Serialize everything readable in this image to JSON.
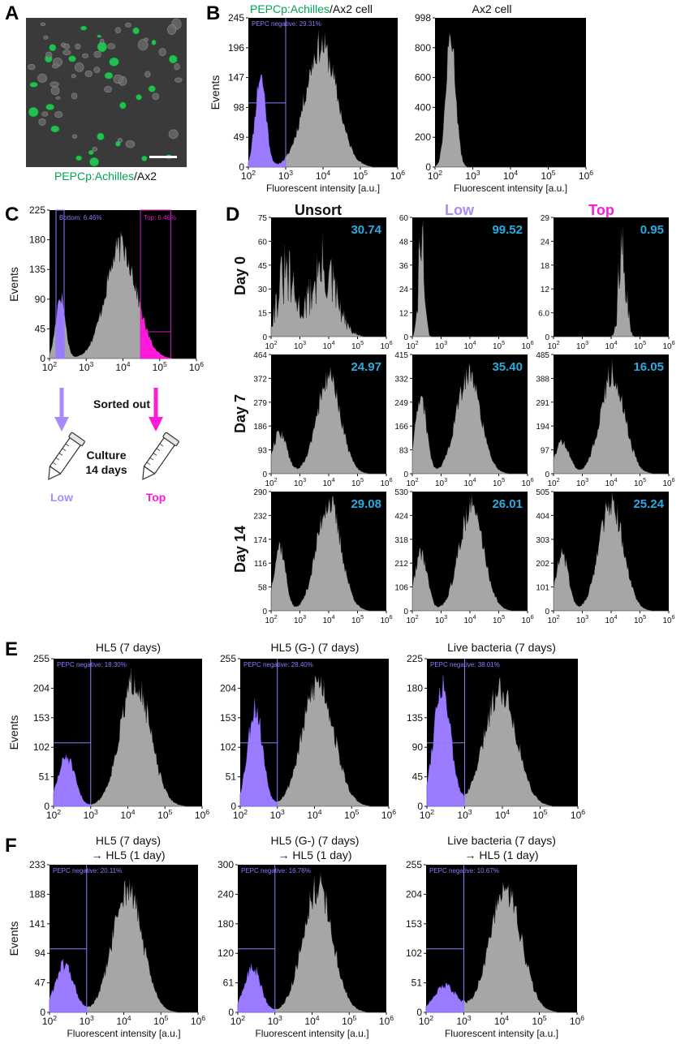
{
  "panel_labels": {
    "A": "A",
    "B": "B",
    "C": "C",
    "D": "D",
    "E": "E",
    "F": "F"
  },
  "colors": {
    "histogram_fill": "#a6a6a6",
    "negative_fill": "#9b7bff",
    "top_fill": "#ff1ad9",
    "gate_line_blue": "#8a7cff",
    "gate_line_magenta": "#d11fc9",
    "percent_label": "#29abe2",
    "achilles_green": "#00a651",
    "low_label": "#a78bfa",
    "top_label": "#ff1ad9",
    "micro_background": "#3a3a3a"
  },
  "panel_a": {
    "caption_green": "PEPCp:Achilles",
    "caption_black": "/Ax2"
  },
  "panel_b": {
    "left_title_green": "PEPCp:Achilles",
    "left_title_black": "/Ax2 cell",
    "right_title": "Ax2 cell",
    "ylabel": "Events",
    "xlabel": "Fluorescent intensity [a.u.]",
    "gate_label": "PEPC negative: 29.31%"
  },
  "panel_c": {
    "ylabel": "Events",
    "bottom_gate_label": "Bottom: 6.46%",
    "top_gate_label": "Top: 6.46%",
    "sorted_out": "Sorted out",
    "culture_line1": "Culture",
    "culture_line2": "14 days",
    "low": "Low",
    "top": "Top"
  },
  "panel_d": {
    "col_headers": [
      "Unsort",
      "Low",
      "Top"
    ],
    "row_headers": [
      "Day 0",
      "Day 7",
      "Day 14"
    ],
    "percents": [
      [
        "30.74",
        "99.52",
        "0.95"
      ],
      [
        "24.97",
        "35.40",
        "16.05"
      ],
      [
        "29.08",
        "26.01",
        "25.24"
      ]
    ],
    "yticks": [
      [
        [
          "0",
          "15",
          "30",
          "45",
          "60",
          "75"
        ],
        [
          "0",
          "12",
          "24",
          "36",
          "48",
          "60"
        ],
        [
          "0",
          "6.0",
          "12",
          "18",
          "24",
          "29"
        ]
      ],
      [
        [
          "0",
          "93",
          "186",
          "279",
          "372",
          "464"
        ],
        [
          "0",
          "83",
          "166",
          "249",
          "332",
          "415"
        ],
        [
          "0",
          "97",
          "194",
          "291",
          "388",
          "485"
        ]
      ],
      [
        [
          "0",
          "58",
          "116",
          "174",
          "232",
          "290"
        ],
        [
          "0",
          "106",
          "212",
          "318",
          "424",
          "530"
        ],
        [
          "0",
          "101",
          "202",
          "303",
          "404",
          "505"
        ]
      ]
    ]
  },
  "panel_e": {
    "ylabel": "Events",
    "titles": [
      "HL5 (7 days)",
      "HL5 (G-) (7 days)",
      "Live bacteria (7 days)"
    ],
    "gate_labels": [
      "PEPC negative: 18.30%",
      "PEPC negative: 28.40%",
      "PEPC negative: 38.01%"
    ]
  },
  "panel_f": {
    "ylabel": "Events",
    "xlabel": "Fluorescent intensity [a.u.]",
    "titles_line1": [
      "HL5 (7 days)",
      "HL5 (G-) (7 days)",
      "Live bacteria (7 days)"
    ],
    "titles_line2": [
      "→ HL5 (1 day)",
      "→ HL5 (1 day)",
      "→ HL5 (1 day)"
    ],
    "gate_labels": [
      "PEPC negative: 20.11%",
      "PEPC negative: 16.76%",
      "PEPC negative: 10.67%"
    ]
  },
  "chart_data": [
    {
      "id": "B-left",
      "type": "histogram",
      "title": "PEPCp:Achilles/Ax2 cell",
      "xlabel": "Fluorescent intensity [a.u.]",
      "ylabel": "Events",
      "xscale": "log",
      "xlim": [
        100,
        1000000
      ],
      "ylim": [
        0,
        245
      ],
      "yticks": [
        "0",
        "49",
        "98",
        "147",
        "196",
        "245"
      ],
      "gate_x": 1000,
      "gate_fraction": 0.2931,
      "peaks": [
        {
          "log10_center": 2.33,
          "sigma": 0.14,
          "height": 150
        },
        {
          "log10_center": 3.95,
          "sigma": 0.42,
          "height": 200
        }
      ]
    },
    {
      "id": "B-right",
      "type": "histogram",
      "title": "Ax2 cell",
      "xlabel": "Fluorescent intensity [a.u.]",
      "xscale": "log",
      "xlim": [
        100,
        1000000
      ],
      "ylim": [
        0,
        998
      ],
      "yticks": [
        "0",
        "200",
        "400",
        "600",
        "800",
        "998"
      ],
      "peaks": [
        {
          "log10_center": 2.42,
          "sigma": 0.13,
          "height": 880
        }
      ]
    },
    {
      "id": "C",
      "type": "histogram",
      "ylabel": "Events",
      "xscale": "log",
      "xlim": [
        100,
        1000000
      ],
      "ylim": [
        0,
        225
      ],
      "yticks": [
        "0",
        "45",
        "90",
        "135",
        "180",
        "225"
      ],
      "bottom_gate": [
        150,
        250
      ],
      "top_gate": [
        30000,
        200000
      ],
      "peaks": [
        {
          "log10_center": 2.3,
          "sigma": 0.13,
          "height": 95
        },
        {
          "log10_center": 3.95,
          "sigma": 0.42,
          "height": 170
        }
      ]
    },
    {
      "id": "D-day0-unsort",
      "type": "histogram",
      "ylim": [
        0,
        75
      ],
      "noisy": true,
      "peaks": [
        {
          "log10_center": 2.5,
          "sigma": 0.3,
          "height": 38
        },
        {
          "log10_center": 3.8,
          "sigma": 0.45,
          "height": 42
        }
      ]
    },
    {
      "id": "D-day0-low",
      "type": "histogram",
      "ylim": [
        0,
        60
      ],
      "noisy": true,
      "peaks": [
        {
          "log10_center": 2.32,
          "sigma": 0.1,
          "height": 48
        }
      ]
    },
    {
      "id": "D-day0-top",
      "type": "histogram",
      "ylim": [
        0,
        29
      ],
      "noisy": true,
      "peaks": [
        {
          "log10_center": 4.4,
          "sigma": 0.12,
          "height": 26
        }
      ]
    },
    {
      "id": "D-day7-unsort",
      "type": "histogram",
      "ylim": [
        0,
        464
      ],
      "peaks": [
        {
          "log10_center": 2.3,
          "sigma": 0.25,
          "height": 160
        },
        {
          "log10_center": 4.0,
          "sigma": 0.42,
          "height": 370
        }
      ]
    },
    {
      "id": "D-day7-low",
      "type": "histogram",
      "ylim": [
        0,
        415
      ],
      "peaks": [
        {
          "log10_center": 2.3,
          "sigma": 0.2,
          "height": 260
        },
        {
          "log10_center": 3.95,
          "sigma": 0.42,
          "height": 345
        }
      ]
    },
    {
      "id": "D-day7-top",
      "type": "histogram",
      "ylim": [
        0,
        485
      ],
      "peaks": [
        {
          "log10_center": 2.3,
          "sigma": 0.25,
          "height": 130
        },
        {
          "log10_center": 4.05,
          "sigma": 0.42,
          "height": 410
        }
      ]
    },
    {
      "id": "D-day14-unsort",
      "type": "histogram",
      "ylim": [
        0,
        290
      ],
      "peaks": [
        {
          "log10_center": 2.3,
          "sigma": 0.2,
          "height": 160
        },
        {
          "log10_center": 4.0,
          "sigma": 0.42,
          "height": 265
        }
      ]
    },
    {
      "id": "D-day14-low",
      "type": "histogram",
      "ylim": [
        0,
        530
      ],
      "peaks": [
        {
          "log10_center": 2.3,
          "sigma": 0.22,
          "height": 260
        },
        {
          "log10_center": 4.05,
          "sigma": 0.42,
          "height": 465
        }
      ]
    },
    {
      "id": "D-day14-top",
      "type": "histogram",
      "ylim": [
        0,
        505
      ],
      "peaks": [
        {
          "log10_center": 2.3,
          "sigma": 0.22,
          "height": 245
        },
        {
          "log10_center": 4.0,
          "sigma": 0.42,
          "height": 455
        }
      ]
    },
    {
      "id": "E-HL5",
      "type": "histogram",
      "title": "HL5 (7 days)",
      "ylabel": "Events",
      "xscale": "log",
      "xlim": [
        100,
        1000000
      ],
      "ylim": [
        0,
        255
      ],
      "yticks": [
        "0",
        "51",
        "102",
        "153",
        "204",
        "255"
      ],
      "gate_x": 1000,
      "gate_fraction": 0.183,
      "peaks": [
        {
          "log10_center": 2.35,
          "sigma": 0.22,
          "height": 85
        },
        {
          "log10_center": 4.2,
          "sigma": 0.4,
          "height": 220
        }
      ]
    },
    {
      "id": "E-HL5G",
      "type": "histogram",
      "title": "HL5 (G-) (7 days)",
      "xscale": "log",
      "xlim": [
        100,
        1000000
      ],
      "ylim": [
        0,
        255
      ],
      "yticks": [
        "0",
        "51",
        "102",
        "153",
        "204",
        "255"
      ],
      "gate_x": 1000,
      "gate_fraction": 0.284,
      "peaks": [
        {
          "log10_center": 2.4,
          "sigma": 0.2,
          "height": 170
        },
        {
          "log10_center": 4.1,
          "sigma": 0.42,
          "height": 215
        }
      ]
    },
    {
      "id": "E-bacteria",
      "type": "histogram",
      "title": "Live bacteria (7 days)",
      "xscale": "log",
      "xlim": [
        100,
        1000000
      ],
      "ylim": [
        0,
        225
      ],
      "yticks": [
        "0",
        "45",
        "90",
        "135",
        "180",
        "225"
      ],
      "gate_x": 1000,
      "gate_fraction": 0.3801,
      "peaks": [
        {
          "log10_center": 2.4,
          "sigma": 0.22,
          "height": 185
        },
        {
          "log10_center": 3.95,
          "sigma": 0.42,
          "height": 180
        }
      ]
    },
    {
      "id": "F-HL5",
      "type": "histogram",
      "title": "HL5 (7 days) → HL5 (1 day)",
      "ylabel": "Events",
      "xlabel": "Fluorescent intensity [a.u.]",
      "xscale": "log",
      "xlim": [
        100,
        1000000
      ],
      "ylim": [
        0,
        233
      ],
      "yticks": [
        "0",
        "47",
        "94",
        "141",
        "188",
        "233"
      ],
      "gate_x": 1000,
      "gate_fraction": 0.2011,
      "peaks": [
        {
          "log10_center": 2.4,
          "sigma": 0.25,
          "height": 75
        },
        {
          "log10_center": 4.1,
          "sigma": 0.4,
          "height": 195
        }
      ]
    },
    {
      "id": "F-HL5G",
      "type": "histogram",
      "title": "HL5 (G-) (7 days) → HL5 (1 day)",
      "xlabel": "Fluorescent intensity [a.u.]",
      "xscale": "log",
      "xlim": [
        100,
        1000000
      ],
      "ylim": [
        0,
        300
      ],
      "yticks": [
        "0",
        "61",
        "120",
        "180",
        "240",
        "300"
      ],
      "gate_x": 1000,
      "gate_fraction": 0.1676,
      "peaks": [
        {
          "log10_center": 2.4,
          "sigma": 0.22,
          "height": 90
        },
        {
          "log10_center": 4.15,
          "sigma": 0.4,
          "height": 255
        }
      ]
    },
    {
      "id": "F-bacteria",
      "type": "histogram",
      "title": "Live bacteria (7 days) → HL5 (1 day)",
      "xlabel": "Fluorescent intensity [a.u.]",
      "xscale": "log",
      "xlim": [
        100,
        1000000
      ],
      "ylim": [
        0,
        255
      ],
      "yticks": [
        "0",
        "51",
        "102",
        "153",
        "204",
        "255"
      ],
      "gate_x": 1000,
      "gate_fraction": 0.1067,
      "peaks": [
        {
          "log10_center": 2.5,
          "sigma": 0.3,
          "height": 45
        },
        {
          "log10_center": 4.1,
          "sigma": 0.42,
          "height": 210
        }
      ]
    }
  ]
}
